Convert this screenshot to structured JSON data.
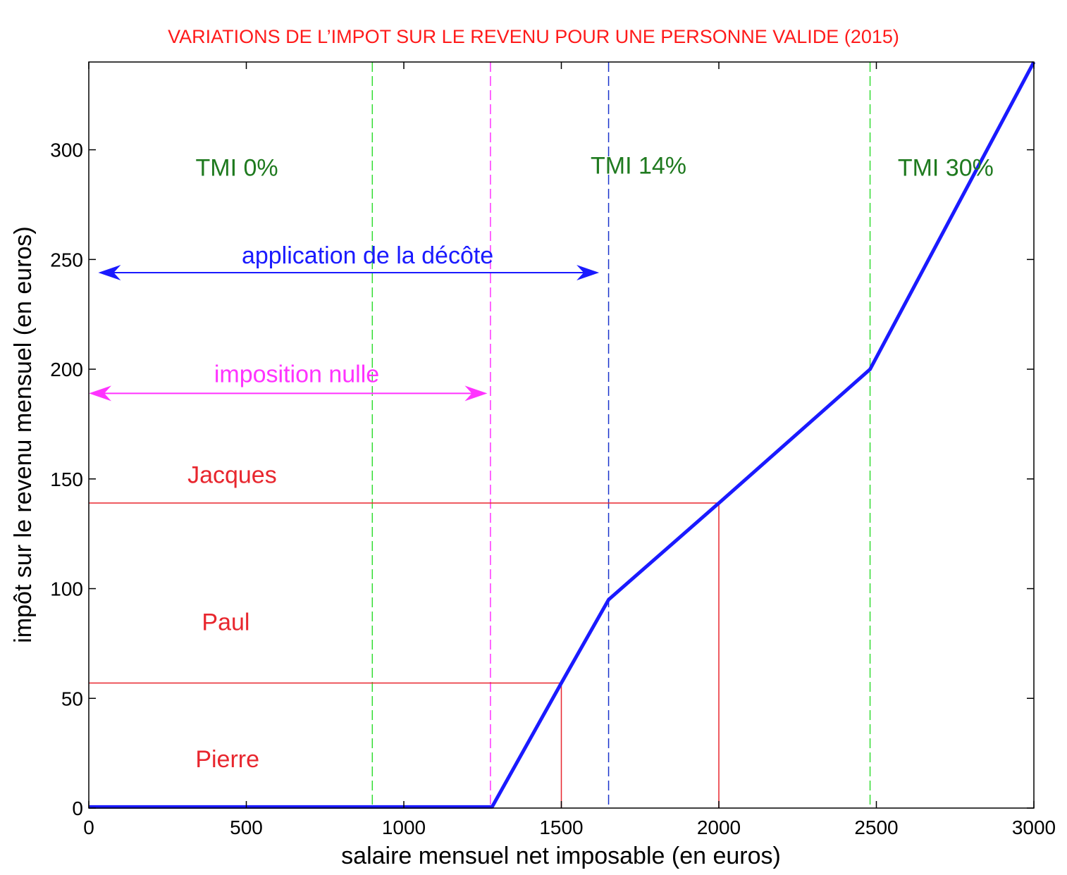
{
  "chart_data": {
    "type": "line",
    "title": "VARIATIONS DE L’IMPOT SUR LE REVENU POUR UNE PERSONNE VALIDE (2015)",
    "xlabel": "salaire mensuel net imposable (en euros)",
    "ylabel": "impôt sur le revenu mensuel (en euros)",
    "xlim": [
      0,
      3000
    ],
    "ylim": [
      0,
      340
    ],
    "x_ticks": [
      0,
      500,
      1000,
      1500,
      2000,
      2500,
      3000
    ],
    "y_ticks": [
      0,
      50,
      100,
      150,
      200,
      250,
      300
    ],
    "grid": false,
    "series": [
      {
        "color": "#1a1aff",
        "points": [
          {
            "x": 0,
            "y": 0.5
          },
          {
            "x": 1280,
            "y": 0.5
          },
          {
            "x": 1500,
            "y": 57
          },
          {
            "x": 1650,
            "y": 95
          },
          {
            "x": 2000,
            "y": 139
          },
          {
            "x": 2480,
            "y": 200
          },
          {
            "x": 3000,
            "y": 340
          }
        ]
      }
    ],
    "vertical_lines": [
      {
        "x": 900,
        "color": "#33dd33",
        "style": "dashed"
      },
      {
        "x": 1275,
        "color": "#ff33ff",
        "style": "dashed"
      },
      {
        "x": 1650,
        "color": "#1a33cc",
        "style": "dashed"
      },
      {
        "x": 2480,
        "color": "#33dd33",
        "style": "dashed"
      }
    ],
    "reference_lines": [
      {
        "x": 1500,
        "y": 57,
        "color": "#e8262e"
      },
      {
        "x": 2000,
        "y": 139,
        "color": "#e8262e"
      }
    ],
    "ranges": [
      {
        "label": "application de la décôte",
        "from": 30,
        "to": 1620,
        "y": 244,
        "label_x": 885,
        "label_y": 252,
        "color": "#1a1aff"
      },
      {
        "label": "imposition nulle",
        "from": 0,
        "to": 1265,
        "y": 189,
        "label_x": 660,
        "label_y": 198,
        "color": "#ff33ff"
      }
    ],
    "annotations": [
      {
        "text": "TMI 0%",
        "x": 470,
        "y": 292,
        "color": "#1f7a1f"
      },
      {
        "text": "TMI 14%",
        "x": 1745,
        "y": 293,
        "color": "#1f7a1f"
      },
      {
        "text": "TMI 30%",
        "x": 2720,
        "y": 292,
        "color": "#1f7a1f"
      },
      {
        "text": "Jacques",
        "x": 455,
        "y": 152,
        "color": "#e8262e"
      },
      {
        "text": "Paul",
        "x": 435,
        "y": 85,
        "color": "#e8262e"
      },
      {
        "text": "Pierre",
        "x": 440,
        "y": 22.5,
        "color": "#e8262e"
      }
    ]
  }
}
